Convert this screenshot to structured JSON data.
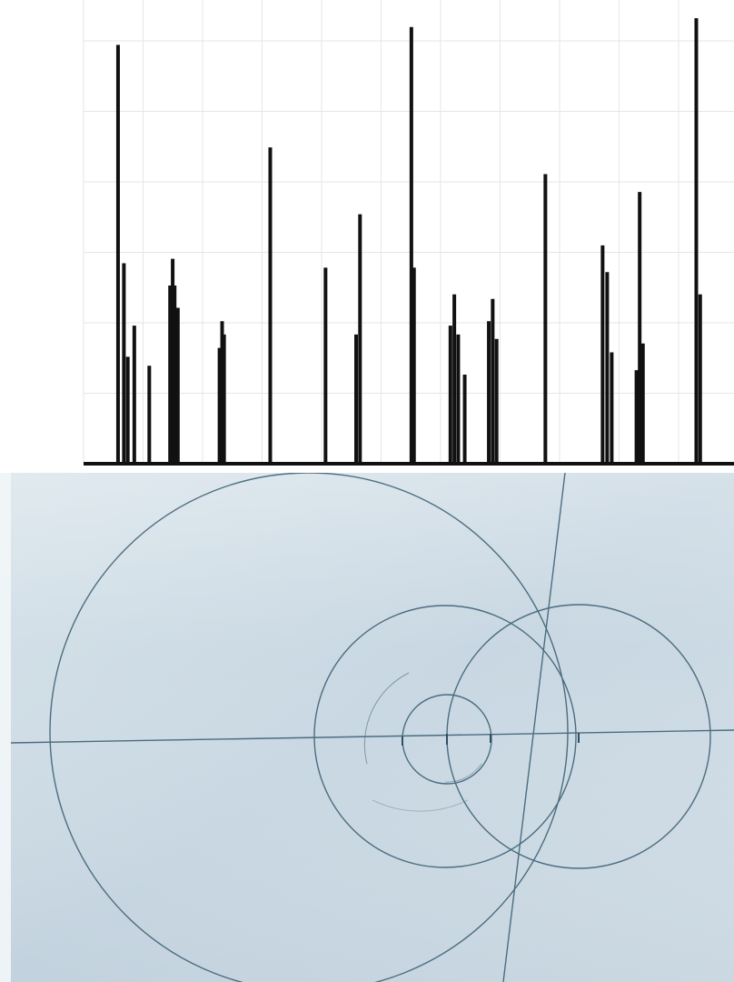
{
  "chart_data": {
    "type": "line",
    "title": "",
    "xlabel": "",
    "ylabel": "",
    "x_ticks_visible": false,
    "y_ticks_visible": false,
    "grid": true,
    "legend": "none",
    "line_color": "#111111",
    "grid_color": "#e6e6e6",
    "xlim": [
      0,
      100
    ],
    "ylim": [
      0,
      1
    ],
    "peaks": [
      [
        5.3,
        0.94
      ],
      [
        6.2,
        0.45
      ],
      [
        6.8,
        0.24
      ],
      [
        7.8,
        0.31
      ],
      [
        10.1,
        0.22
      ],
      [
        13.3,
        0.4
      ],
      [
        13.7,
        0.46
      ],
      [
        14.0,
        0.4
      ],
      [
        14.5,
        0.35
      ],
      [
        20.9,
        0.26
      ],
      [
        21.3,
        0.32
      ],
      [
        21.6,
        0.29
      ],
      [
        28.7,
        0.71
      ],
      [
        37.2,
        0.44
      ],
      [
        41.9,
        0.29
      ],
      [
        42.5,
        0.56
      ],
      [
        50.4,
        0.98
      ],
      [
        50.8,
        0.44
      ],
      [
        56.4,
        0.31
      ],
      [
        57.0,
        0.38
      ],
      [
        57.6,
        0.29
      ],
      [
        58.6,
        0.2
      ],
      [
        62.3,
        0.32
      ],
      [
        62.9,
        0.37
      ],
      [
        63.5,
        0.28
      ],
      [
        71.0,
        0.65
      ],
      [
        79.8,
        0.49
      ],
      [
        80.5,
        0.43
      ],
      [
        81.2,
        0.25
      ],
      [
        85.0,
        0.21
      ],
      [
        85.5,
        0.61
      ],
      [
        86.0,
        0.27
      ],
      [
        94.2,
        1.0
      ],
      [
        94.8,
        0.38
      ]
    ]
  },
  "photo": {
    "description_tokens": [],
    "paper_color": "#c9d8e3",
    "pencil_color": "#3a5d73"
  }
}
